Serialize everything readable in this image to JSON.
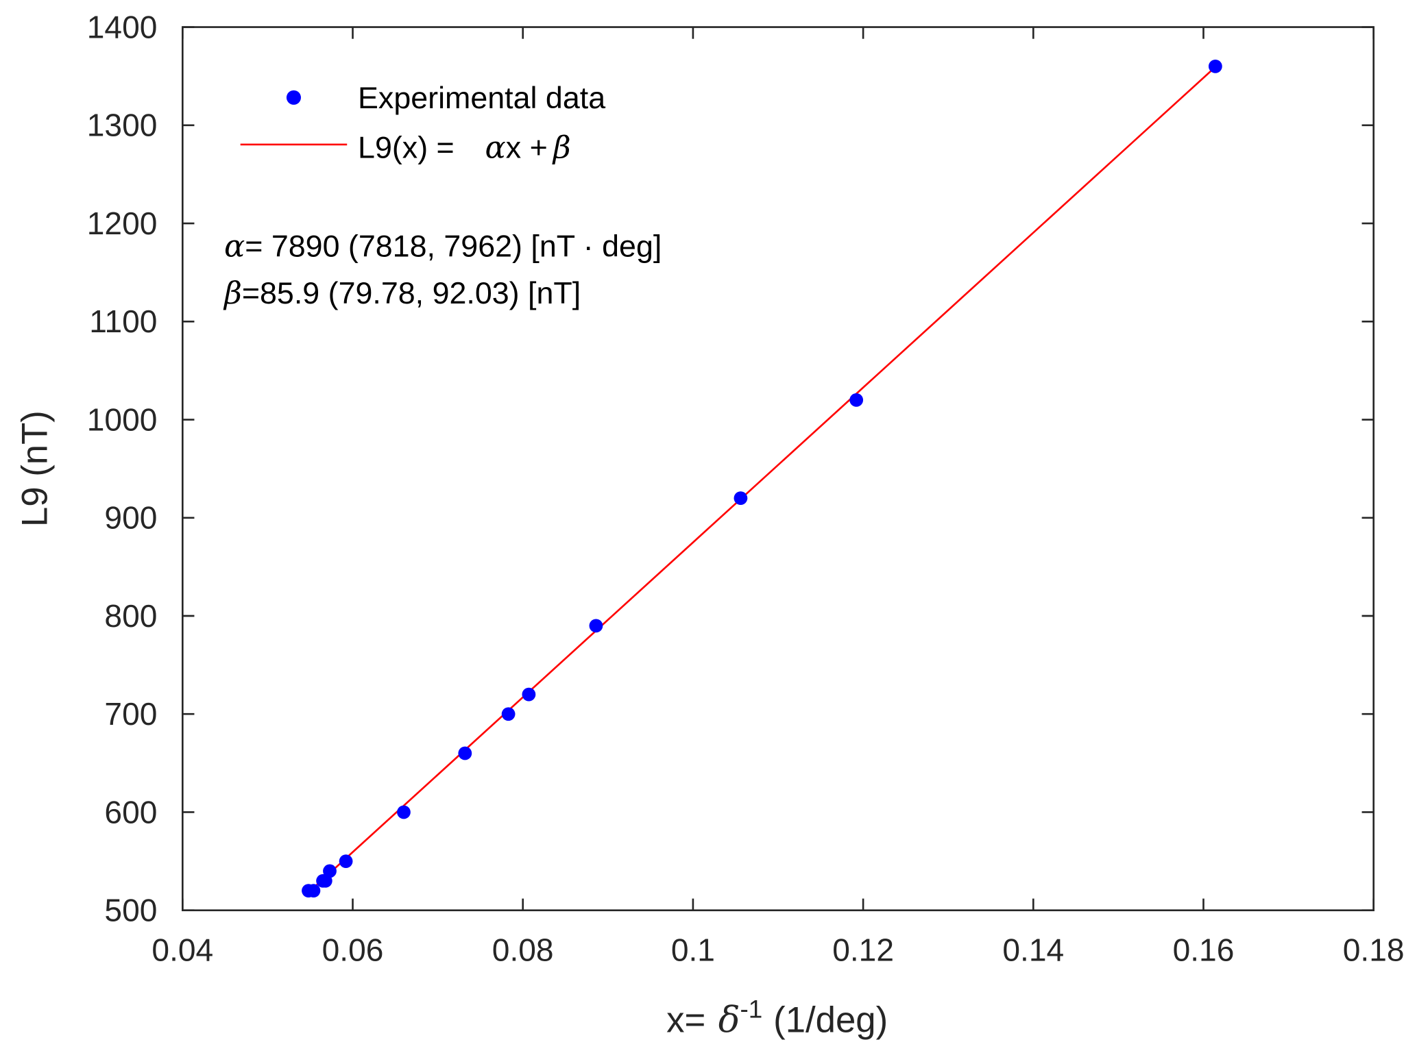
{
  "chart_data": {
    "type": "scatter",
    "xlabel_prefix": "x=",
    "xlabel_symbol": "δ",
    "xlabel_sup": "-1",
    "xlabel_suffix": "(1/deg)",
    "ylabel": "L9 (nT)",
    "xlim": [
      0.04,
      0.18
    ],
    "ylim": [
      500,
      1400
    ],
    "xticks": [
      "0.04",
      "0.06",
      "0.08",
      "0.1",
      "0.12",
      "0.14",
      "0.16",
      "0.18"
    ],
    "xtick_values": [
      0.04,
      0.06,
      0.08,
      0.1,
      0.12,
      0.14,
      0.16,
      0.18
    ],
    "yticks": [
      "500",
      "600",
      "700",
      "800",
      "900",
      "1000",
      "1100",
      "1200",
      "1300",
      "1400"
    ],
    "ytick_values": [
      500,
      600,
      700,
      800,
      900,
      1000,
      1100,
      1200,
      1300,
      1400
    ],
    "grid": false,
    "legend_position": "top-left",
    "series": [
      {
        "name": "Experimental data",
        "type": "scatter",
        "color": "#0000ff",
        "x": [
          0.0548,
          0.0554,
          0.0565,
          0.0568,
          0.0573,
          0.0592,
          0.066,
          0.0732,
          0.0783,
          0.0807,
          0.0886,
          0.1056,
          0.1192,
          0.1614
        ],
        "y": [
          520,
          520,
          530,
          530,
          540,
          550,
          600,
          660,
          700,
          720,
          790,
          920,
          1020,
          1360
        ]
      },
      {
        "name": "L9(x) = αx + β",
        "type": "line",
        "color": "#ff0000",
        "x": [
          0.0551,
          0.1614
        ],
        "alpha": 7890,
        "beta": 85.9
      }
    ],
    "legend": {
      "scatter_label": "Experimental data",
      "line_label_prefix": "L9(x) =",
      "line_label_alpha": "α",
      "line_label_mid": "x +",
      "line_label_beta": "β"
    },
    "annotations": {
      "alpha_symbol": "α",
      "alpha_text": "= 7890 (7818, 7962) [nT · deg]",
      "beta_symbol": "β",
      "beta_text": "=85.9  (79.78, 92.03) [nT]"
    }
  }
}
